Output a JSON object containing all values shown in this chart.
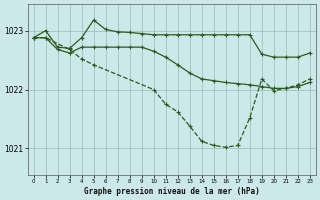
{
  "title": "Graphe pression niveau de la mer (hPa)",
  "bg_color": "#cce8e8",
  "grid_color": "#99bbbb",
  "line_color": "#2d5a1e",
  "ylim": [
    1020.55,
    1023.45
  ],
  "yticks": [
    1021,
    1022,
    1023
  ],
  "xlim": [
    -0.5,
    23.5
  ],
  "xticks": [
    0,
    1,
    2,
    3,
    4,
    5,
    6,
    7,
    8,
    9,
    10,
    11,
    12,
    13,
    14,
    15,
    16,
    17,
    18,
    19,
    20,
    21,
    22,
    23
  ],
  "s1_x": [
    0,
    1,
    2,
    3,
    4,
    5,
    6,
    7,
    8,
    9,
    10,
    11,
    12,
    13,
    14,
    15,
    16,
    17,
    18,
    19,
    20,
    21,
    22,
    23
  ],
  "s1_y": [
    1022.88,
    1023.0,
    1022.72,
    1022.7,
    1022.88,
    1023.18,
    1023.02,
    1022.98,
    1022.97,
    1022.95,
    1022.93,
    1022.93,
    1022.93,
    1022.93,
    1022.93,
    1022.93,
    1022.93,
    1022.93,
    1022.93,
    1022.6,
    1022.55,
    1022.55,
    1022.55,
    1022.62
  ],
  "s2_x": [
    0,
    1,
    2,
    3,
    4,
    5,
    6,
    7,
    8,
    9,
    10,
    11,
    12,
    13,
    14,
    15,
    16,
    17,
    18,
    19,
    20,
    21,
    22,
    23
  ],
  "s2_y": [
    1022.88,
    1022.88,
    1022.68,
    1022.62,
    1022.72,
    1022.72,
    1022.72,
    1022.72,
    1022.72,
    1022.72,
    1022.65,
    1022.55,
    1022.42,
    1022.28,
    1022.18,
    1022.15,
    1022.12,
    1022.1,
    1022.08,
    1022.05,
    1022.02,
    1022.02,
    1022.05,
    1022.12
  ],
  "s3_x": [
    0,
    1,
    3,
    4,
    5,
    10,
    11,
    12,
    13,
    14,
    15,
    16,
    17,
    18,
    19,
    20,
    21,
    22,
    23
  ],
  "s3_y": [
    1022.88,
    1022.88,
    1022.68,
    1022.52,
    1022.42,
    1022.0,
    1021.75,
    1021.62,
    1021.38,
    1021.12,
    1021.05,
    1021.02,
    1021.05,
    1021.52,
    1022.18,
    1021.98,
    1022.02,
    1022.08,
    1022.18
  ],
  "lw": 0.9,
  "ms": 2.5
}
